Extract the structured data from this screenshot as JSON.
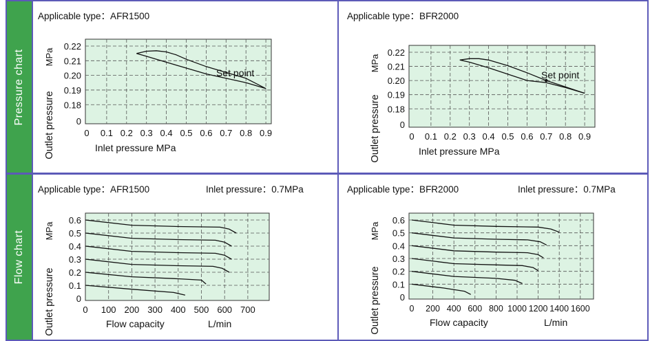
{
  "sections": [
    "Pressure chart",
    "Flow chart"
  ],
  "colors": {
    "plot_bg": "#ddf3e3",
    "frame": "#5c5ab8",
    "side": "#3fa34d"
  },
  "chart_data": [
    {
      "type": "line",
      "title": "Applicable type：AFR1500",
      "subtitle": "",
      "xlabel": "Inlet pressure    MPa",
      "ylabel": "Outlet pressure",
      "yunit": "MPa",
      "xticks": [
        "0",
        "0.1",
        "0.2",
        "0.3",
        "0.4",
        "0.5",
        "0.6",
        "0.7",
        "0.8",
        "0.9"
      ],
      "yticks": [
        "0",
        "0.18",
        "0.19",
        "0.20",
        "0.21",
        "0.22"
      ],
      "annotation": "Set point",
      "series": [
        {
          "x": [
            0.25,
            0.3,
            0.35,
            0.4,
            0.45,
            0.5,
            0.6,
            0.7,
            0.8,
            0.9
          ],
          "y": [
            0.215,
            0.2165,
            0.2168,
            0.216,
            0.214,
            0.211,
            0.206,
            0.202,
            0.198,
            0.191
          ]
        },
        {
          "x": [
            0.25,
            0.3,
            0.4,
            0.5,
            0.6,
            0.7,
            0.8,
            0.9
          ],
          "y": [
            0.215,
            0.213,
            0.209,
            0.205,
            0.201,
            0.198,
            0.195,
            0.191
          ]
        }
      ]
    },
    {
      "type": "line",
      "title": "Applicable type：BFR2000",
      "subtitle": "",
      "xlabel": "Inlet pressure    MPa",
      "ylabel": "Outlet pressure",
      "yunit": "MPa",
      "xticks": [
        "0",
        "0.1",
        "0.2",
        "0.3",
        "0.4",
        "0.5",
        "0.6",
        "0.7",
        "0.8",
        "0.9"
      ],
      "yticks": [
        "0",
        "0.18",
        "0.19",
        "0.20",
        "0.21",
        "0.22"
      ],
      "annotation": "Set point",
      "series": [
        {
          "x": [
            0.25,
            0.3,
            0.35,
            0.4,
            0.5,
            0.6,
            0.7,
            0.8,
            0.9
          ],
          "y": [
            0.2145,
            0.2155,
            0.2155,
            0.2145,
            0.2105,
            0.2055,
            0.2,
            0.1955,
            0.191
          ]
        },
        {
          "x": [
            0.25,
            0.3,
            0.4,
            0.5,
            0.6,
            0.7,
            0.8,
            0.9
          ],
          "y": [
            0.2145,
            0.213,
            0.209,
            0.2045,
            0.2,
            0.1985,
            0.195,
            0.191
          ]
        }
      ]
    },
    {
      "type": "line",
      "title": "Applicable type：AFR1500",
      "subtitle": "Inlet pressure：0.7MPa",
      "xlabel": "Flow capacity",
      "xunit": "L/min",
      "ylabel": "Outlet pressure",
      "yunit": "MPa",
      "xlim": [
        0,
        700
      ],
      "xticks": [
        "0",
        "100",
        "200",
        "300",
        "400",
        "500",
        "600",
        "700"
      ],
      "yticks": [
        "0",
        "0.1",
        "0.2",
        "0.3",
        "0.4",
        "0.5",
        "0.6"
      ],
      "series": [
        {
          "x": [
            0,
            200,
            400,
            580,
            620,
            650
          ],
          "y": [
            0.6,
            0.56,
            0.55,
            0.545,
            0.53,
            0.5
          ]
        },
        {
          "x": [
            0,
            200,
            400,
            560,
            600,
            630
          ],
          "y": [
            0.5,
            0.46,
            0.45,
            0.445,
            0.43,
            0.4
          ]
        },
        {
          "x": [
            0,
            200,
            400,
            560,
            600,
            630
          ],
          "y": [
            0.4,
            0.36,
            0.35,
            0.345,
            0.33,
            0.3
          ]
        },
        {
          "x": [
            0,
            200,
            400,
            550,
            590,
            620
          ],
          "y": [
            0.3,
            0.26,
            0.25,
            0.245,
            0.23,
            0.2
          ]
        },
        {
          "x": [
            0,
            200,
            400,
            500,
            520
          ],
          "y": [
            0.2,
            0.165,
            0.15,
            0.14,
            0.11
          ]
        },
        {
          "x": [
            0,
            200,
            380,
            430
          ],
          "y": [
            0.1,
            0.07,
            0.045,
            0.025
          ]
        }
      ]
    },
    {
      "type": "line",
      "title": "Applicable type：BFR2000",
      "subtitle": "Inlet pressure：0.7MPa",
      "xlabel": "Flow capacity",
      "xunit": "L/min",
      "ylabel": "Outlet pressure",
      "yunit": "MPa",
      "xlim": [
        0,
        1600
      ],
      "xticks": [
        "0",
        "200",
        "400",
        "600",
        "800",
        "1000",
        "1200",
        "1400",
        "1600"
      ],
      "yticks": [
        "0",
        "0.1",
        "0.2",
        "0.3",
        "0.4",
        "0.5",
        "0.6"
      ],
      "series": [
        {
          "x": [
            0,
            400,
            800,
            1200,
            1320,
            1400
          ],
          "y": [
            0.6,
            0.56,
            0.55,
            0.545,
            0.53,
            0.505
          ]
        },
        {
          "x": [
            0,
            400,
            800,
            1100,
            1220,
            1280
          ],
          "y": [
            0.5,
            0.46,
            0.45,
            0.445,
            0.43,
            0.405
          ]
        },
        {
          "x": [
            0,
            400,
            800,
            1100,
            1200,
            1250
          ],
          "y": [
            0.4,
            0.36,
            0.35,
            0.345,
            0.33,
            0.305
          ]
        },
        {
          "x": [
            0,
            400,
            800,
            1050,
            1150,
            1200
          ],
          "y": [
            0.3,
            0.26,
            0.25,
            0.245,
            0.23,
            0.205
          ]
        },
        {
          "x": [
            0,
            400,
            800,
            980,
            1050
          ],
          "y": [
            0.2,
            0.16,
            0.145,
            0.13,
            0.105
          ]
        },
        {
          "x": [
            0,
            300,
            500,
            560
          ],
          "y": [
            0.1,
            0.07,
            0.045,
            0.02
          ]
        }
      ]
    }
  ]
}
